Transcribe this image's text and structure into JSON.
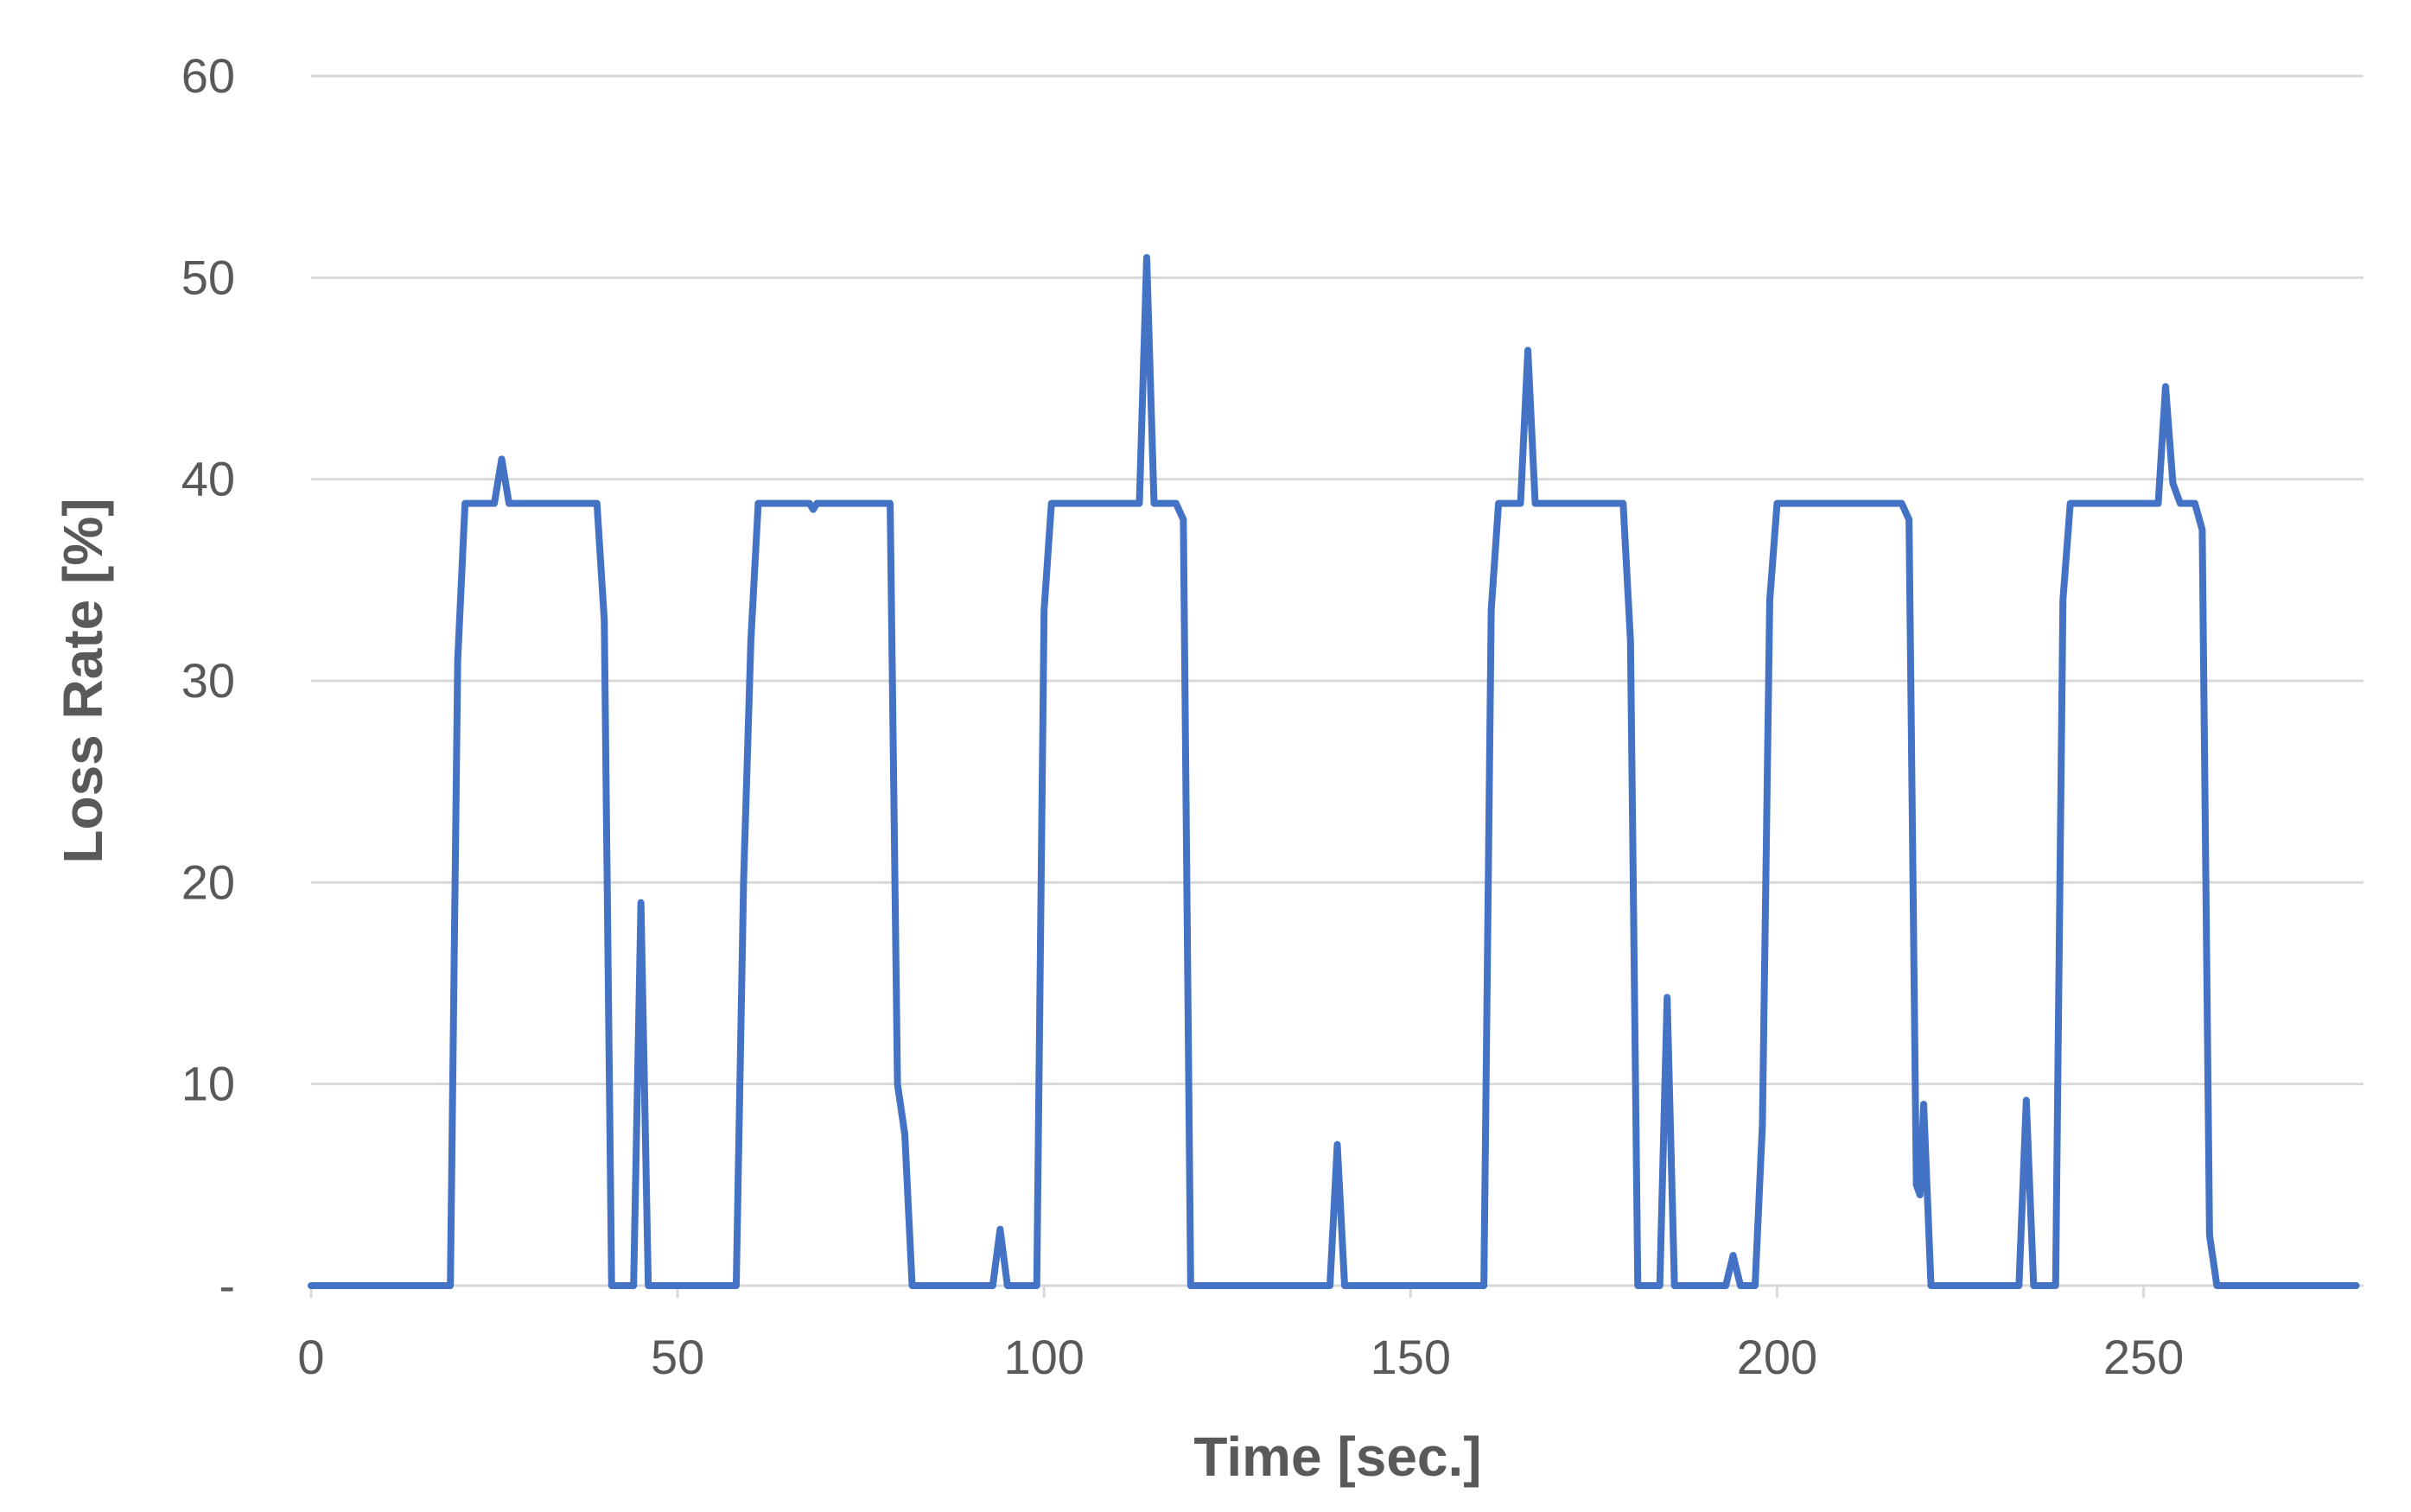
{
  "chart_data": {
    "type": "line",
    "title": "",
    "xlabel": "Time [sec.]",
    "ylabel": "Loss Rate [%]",
    "xlim": [
      0,
      280
    ],
    "ylim": [
      0,
      60
    ],
    "x_ticks": [
      0,
      50,
      100,
      150,
      200,
      250
    ],
    "x_tick_labels": [
      "0",
      "50",
      "100",
      "150",
      "200",
      "250"
    ],
    "y_ticks": [
      0,
      10,
      20,
      30,
      40,
      50,
      60
    ],
    "y_tick_labels": [
      "-",
      "10",
      "20",
      "30",
      "40",
      "50",
      "60"
    ],
    "grid": true,
    "legend": "none",
    "colors": {
      "series": "#4472c4",
      "grid": "#d9d9d9",
      "text": "#595959"
    },
    "series": [
      {
        "points": [
          [
            0,
            0
          ],
          [
            19,
            0
          ],
          [
            20,
            31
          ],
          [
            21,
            38.8
          ],
          [
            25,
            38.8
          ],
          [
            26,
            41
          ],
          [
            27,
            38.8
          ],
          [
            39,
            38.8
          ],
          [
            40,
            33
          ],
          [
            41,
            0
          ],
          [
            44,
            0
          ],
          [
            45,
            19
          ],
          [
            46,
            0
          ],
          [
            58,
            0
          ],
          [
            59,
            20
          ],
          [
            60,
            32
          ],
          [
            61,
            38.8
          ],
          [
            68,
            38.8
          ],
          [
            68.5,
            38.5
          ],
          [
            69,
            38.8
          ],
          [
            79,
            38.8
          ],
          [
            80,
            10
          ],
          [
            81,
            7.5
          ],
          [
            82,
            0
          ],
          [
            93,
            0
          ],
          [
            94,
            2.8
          ],
          [
            95,
            0
          ],
          [
            99,
            0
          ],
          [
            100,
            33.5
          ],
          [
            101,
            38.8
          ],
          [
            113,
            38.8
          ],
          [
            114,
            51
          ],
          [
            115,
            38.8
          ],
          [
            118,
            38.8
          ],
          [
            119,
            38
          ],
          [
            120,
            0
          ],
          [
            139,
            0
          ],
          [
            140,
            7
          ],
          [
            141,
            0
          ],
          [
            160,
            0
          ],
          [
            161,
            33.5
          ],
          [
            162,
            38.8
          ],
          [
            165,
            38.8
          ],
          [
            166,
            46.4
          ],
          [
            167,
            38.8
          ],
          [
            179,
            38.8
          ],
          [
            180,
            32
          ],
          [
            181,
            0
          ],
          [
            184,
            0
          ],
          [
            185,
            14.3
          ],
          [
            186,
            0
          ],
          [
            193,
            0
          ],
          [
            194,
            1.5
          ],
          [
            195,
            0
          ],
          [
            197,
            0
          ],
          [
            198,
            8
          ],
          [
            199,
            34
          ],
          [
            200,
            38.8
          ],
          [
            217,
            38.8
          ],
          [
            218,
            38
          ],
          [
            219,
            5
          ],
          [
            219.5,
            4.5
          ],
          [
            220,
            9
          ],
          [
            221,
            0
          ],
          [
            233,
            0
          ],
          [
            234,
            9.2
          ],
          [
            235,
            0
          ],
          [
            238,
            0
          ],
          [
            239,
            34
          ],
          [
            240,
            38.8
          ],
          [
            252,
            38.8
          ],
          [
            253,
            44.6
          ],
          [
            254,
            39.8
          ],
          [
            255,
            38.8
          ],
          [
            257,
            38.8
          ],
          [
            258,
            37.5
          ],
          [
            259,
            2.5
          ],
          [
            260,
            0
          ],
          [
            279,
            0
          ]
        ]
      }
    ]
  }
}
